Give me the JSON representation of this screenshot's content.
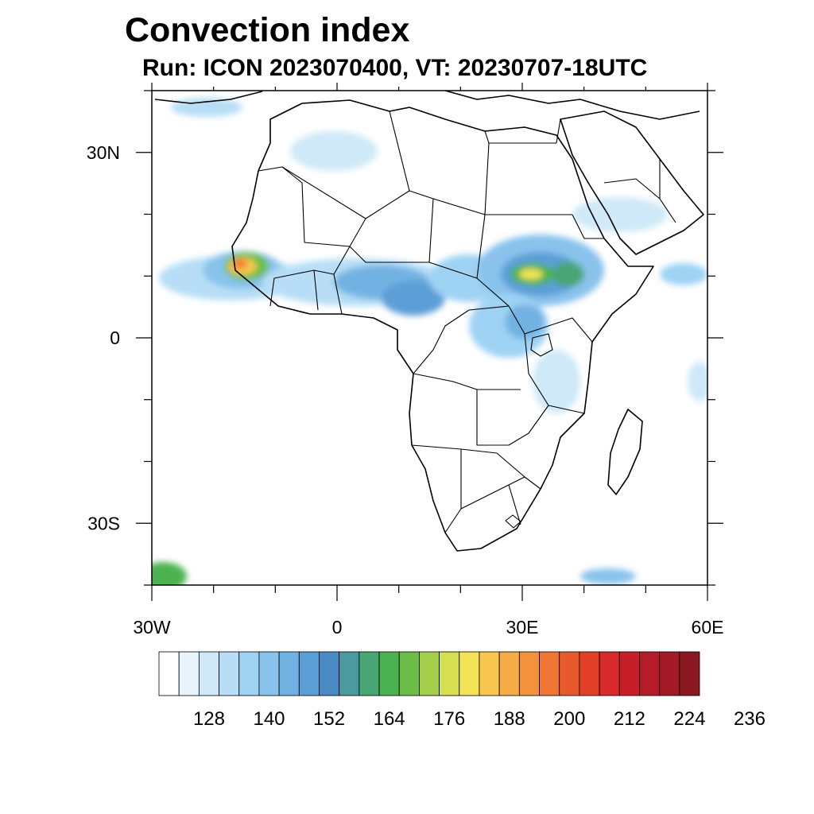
{
  "title": "Convection index",
  "subtitle": "Run: ICON 2023070400,  VT: 20230707-18UTC",
  "map": {
    "region": "Africa",
    "projection": "cylindrical equidistant",
    "lon_range": [
      -30,
      60
    ],
    "lat_range": [
      -40,
      40
    ],
    "lat_ticks": [
      {
        "value": 30,
        "label": "30N"
      },
      {
        "value": 0,
        "label": "0"
      },
      {
        "value": -30,
        "label": "30S"
      }
    ],
    "lon_ticks": [
      {
        "value": -30,
        "label": "30W"
      },
      {
        "value": 0,
        "label": "0"
      },
      {
        "value": 30,
        "label": "30E"
      },
      {
        "value": 60,
        "label": "60E"
      }
    ]
  },
  "colorbar": {
    "colors": [
      "#ffffff",
      "#e8f4fb",
      "#cfe9f8",
      "#b7def6",
      "#9fd3f4",
      "#89c3ec",
      "#72b2e3",
      "#5b9fd7",
      "#4a8bc6",
      "#4a9aa0",
      "#48a574",
      "#4cb24f",
      "#6bbd48",
      "#a5ce4b",
      "#d5df50",
      "#f2e358",
      "#f9c74f",
      "#f6ad45",
      "#f3923a",
      "#f07432",
      "#e95a2b",
      "#e34028",
      "#d9292a",
      "#c81e2a",
      "#b51b28",
      "#a11a25",
      "#8b1820"
    ],
    "labels": [
      "128",
      "140",
      "152",
      "164",
      "176",
      "188",
      "200",
      "212",
      "224",
      "236"
    ]
  }
}
